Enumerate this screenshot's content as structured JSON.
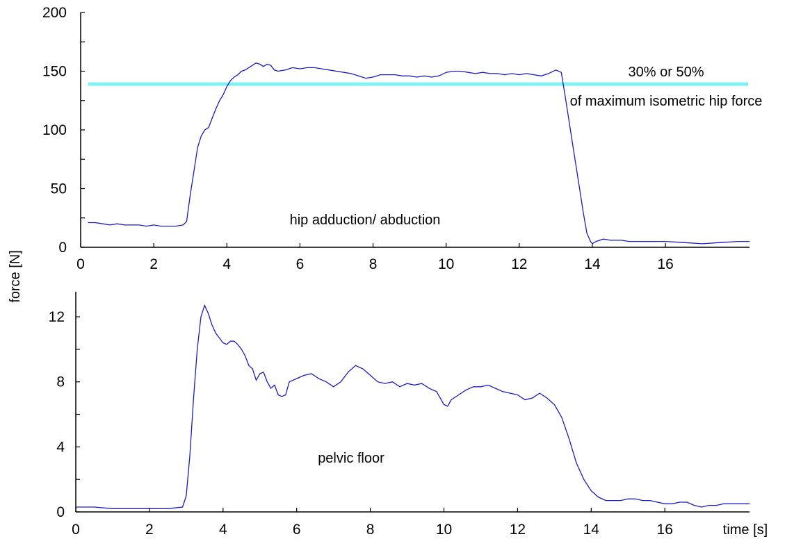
{
  "chart_data": [
    {
      "type": "line",
      "annotation": "hip adduction/ abduction",
      "xlim": [
        0,
        18.3
      ],
      "ylim": [
        0,
        200
      ],
      "x_ticks": [
        "0",
        "2",
        "4",
        "6",
        "8",
        "10",
        "12",
        "14",
        "16"
      ],
      "y_ticks": [
        "0",
        "50",
        "100",
        "150",
        "200"
      ],
      "threshold": {
        "value": 139,
        "label_line1": "30% or 50%",
        "label_line2": "of maximum isometric hip force",
        "color": "#80f2f4"
      },
      "series": [
        {
          "color": "#1a1acc",
          "points": [
            [
              0.2,
              21
            ],
            [
              0.4,
              21
            ],
            [
              0.6,
              20
            ],
            [
              0.8,
              19
            ],
            [
              1.0,
              20
            ],
            [
              1.2,
              19
            ],
            [
              1.4,
              19
            ],
            [
              1.6,
              19
            ],
            [
              1.8,
              18
            ],
            [
              2.0,
              19
            ],
            [
              2.2,
              18
            ],
            [
              2.4,
              18
            ],
            [
              2.6,
              18
            ],
            [
              2.8,
              19
            ],
            [
              2.9,
              22
            ],
            [
              3.0,
              45
            ],
            [
              3.1,
              65
            ],
            [
              3.2,
              85
            ],
            [
              3.3,
              95
            ],
            [
              3.4,
              100
            ],
            [
              3.5,
              102
            ],
            [
              3.6,
              110
            ],
            [
              3.7,
              118
            ],
            [
              3.8,
              125
            ],
            [
              3.9,
              130
            ],
            [
              4.0,
              137
            ],
            [
              4.1,
              142
            ],
            [
              4.2,
              145
            ],
            [
              4.3,
              147
            ],
            [
              4.4,
              150
            ],
            [
              4.5,
              151
            ],
            [
              4.6,
              153
            ],
            [
              4.7,
              155
            ],
            [
              4.8,
              157
            ],
            [
              4.9,
              156
            ],
            [
              5.0,
              154
            ],
            [
              5.1,
              156
            ],
            [
              5.2,
              155
            ],
            [
              5.3,
              151
            ],
            [
              5.4,
              150
            ],
            [
              5.6,
              151
            ],
            [
              5.8,
              153
            ],
            [
              6.0,
              152
            ],
            [
              6.2,
              153
            ],
            [
              6.4,
              153
            ],
            [
              6.6,
              152
            ],
            [
              6.8,
              151
            ],
            [
              7.0,
              150
            ],
            [
              7.2,
              149
            ],
            [
              7.4,
              148
            ],
            [
              7.6,
              146
            ],
            [
              7.8,
              144
            ],
            [
              8.0,
              145
            ],
            [
              8.2,
              147
            ],
            [
              8.4,
              147
            ],
            [
              8.6,
              147
            ],
            [
              8.8,
              146
            ],
            [
              9.0,
              146
            ],
            [
              9.2,
              145
            ],
            [
              9.4,
              146
            ],
            [
              9.6,
              145
            ],
            [
              9.8,
              146
            ],
            [
              10.0,
              149
            ],
            [
              10.2,
              150
            ],
            [
              10.4,
              150
            ],
            [
              10.6,
              149
            ],
            [
              10.8,
              148
            ],
            [
              11.0,
              149
            ],
            [
              11.2,
              148
            ],
            [
              11.4,
              148
            ],
            [
              11.6,
              147
            ],
            [
              11.8,
              148
            ],
            [
              12.0,
              147
            ],
            [
              12.2,
              148
            ],
            [
              12.4,
              147
            ],
            [
              12.6,
              146
            ],
            [
              12.8,
              148
            ],
            [
              13.0,
              151
            ],
            [
              13.15,
              149
            ],
            [
              13.25,
              130
            ],
            [
              13.35,
              110
            ],
            [
              13.45,
              90
            ],
            [
              13.55,
              70
            ],
            [
              13.65,
              50
            ],
            [
              13.75,
              30
            ],
            [
              13.85,
              12
            ],
            [
              13.95,
              5
            ],
            [
              14.0,
              3
            ],
            [
              14.1,
              5
            ],
            [
              14.3,
              7
            ],
            [
              14.5,
              6
            ],
            [
              14.8,
              6
            ],
            [
              15.0,
              5
            ],
            [
              15.5,
              5
            ],
            [
              16.0,
              5
            ],
            [
              16.5,
              4
            ],
            [
              17.0,
              3
            ],
            [
              17.5,
              4
            ],
            [
              18.0,
              5
            ],
            [
              18.3,
              5
            ]
          ]
        }
      ]
    },
    {
      "type": "line",
      "annotation": "pelvic floor",
      "ylabel": "force [N]",
      "xlabel": "time [s]",
      "xlim": [
        0,
        18.3
      ],
      "ylim": [
        0,
        13.5
      ],
      "x_ticks": [
        "0",
        "2",
        "4",
        "6",
        "8",
        "10",
        "12",
        "14",
        "16"
      ],
      "y_ticks": [
        "0",
        "4",
        "8",
        "12"
      ],
      "series": [
        {
          "color": "#1a1acc",
          "points": [
            [
              0.0,
              0.3
            ],
            [
              0.5,
              0.3
            ],
            [
              1.0,
              0.2
            ],
            [
              1.5,
              0.2
            ],
            [
              2.0,
              0.2
            ],
            [
              2.5,
              0.2
            ],
            [
              2.9,
              0.3
            ],
            [
              3.0,
              1.0
            ],
            [
              3.1,
              3.5
            ],
            [
              3.2,
              7.0
            ],
            [
              3.3,
              10.0
            ],
            [
              3.4,
              12.0
            ],
            [
              3.5,
              12.7
            ],
            [
              3.6,
              12.2
            ],
            [
              3.7,
              11.5
            ],
            [
              3.8,
              11.0
            ],
            [
              3.9,
              10.7
            ],
            [
              4.0,
              10.4
            ],
            [
              4.1,
              10.3
            ],
            [
              4.2,
              10.5
            ],
            [
              4.3,
              10.5
            ],
            [
              4.4,
              10.3
            ],
            [
              4.5,
              10.0
            ],
            [
              4.6,
              9.6
            ],
            [
              4.7,
              9.0
            ],
            [
              4.8,
              8.8
            ],
            [
              4.9,
              8.1
            ],
            [
              5.0,
              8.5
            ],
            [
              5.1,
              8.6
            ],
            [
              5.2,
              8.0
            ],
            [
              5.3,
              7.6
            ],
            [
              5.4,
              7.8
            ],
            [
              5.5,
              7.2
            ],
            [
              5.6,
              7.1
            ],
            [
              5.7,
              7.2
            ],
            [
              5.8,
              8.0
            ],
            [
              6.0,
              8.2
            ],
            [
              6.2,
              8.4
            ],
            [
              6.4,
              8.5
            ],
            [
              6.6,
              8.2
            ],
            [
              6.8,
              8.0
            ],
            [
              7.0,
              7.7
            ],
            [
              7.2,
              8.0
            ],
            [
              7.4,
              8.6
            ],
            [
              7.6,
              9.0
            ],
            [
              7.8,
              8.8
            ],
            [
              8.0,
              8.4
            ],
            [
              8.2,
              8.0
            ],
            [
              8.4,
              7.9
            ],
            [
              8.6,
              8.0
            ],
            [
              8.8,
              7.7
            ],
            [
              9.0,
              7.9
            ],
            [
              9.2,
              7.8
            ],
            [
              9.4,
              7.9
            ],
            [
              9.6,
              7.6
            ],
            [
              9.8,
              7.4
            ],
            [
              10.0,
              6.6
            ],
            [
              10.1,
              6.5
            ],
            [
              10.2,
              6.9
            ],
            [
              10.4,
              7.2
            ],
            [
              10.6,
              7.5
            ],
            [
              10.8,
              7.7
            ],
            [
              11.0,
              7.7
            ],
            [
              11.2,
              7.8
            ],
            [
              11.4,
              7.6
            ],
            [
              11.6,
              7.4
            ],
            [
              11.8,
              7.3
            ],
            [
              12.0,
              7.2
            ],
            [
              12.2,
              6.9
            ],
            [
              12.4,
              7.0
            ],
            [
              12.6,
              7.3
            ],
            [
              12.8,
              7.0
            ],
            [
              13.0,
              6.6
            ],
            [
              13.2,
              5.8
            ],
            [
              13.4,
              4.5
            ],
            [
              13.6,
              3.0
            ],
            [
              13.8,
              2.0
            ],
            [
              14.0,
              1.3
            ],
            [
              14.2,
              0.9
            ],
            [
              14.4,
              0.7
            ],
            [
              14.6,
              0.7
            ],
            [
              14.8,
              0.7
            ],
            [
              15.0,
              0.8
            ],
            [
              15.2,
              0.8
            ],
            [
              15.4,
              0.7
            ],
            [
              15.6,
              0.7
            ],
            [
              15.8,
              0.6
            ],
            [
              16.0,
              0.5
            ],
            [
              16.2,
              0.5
            ],
            [
              16.4,
              0.6
            ],
            [
              16.6,
              0.6
            ],
            [
              16.8,
              0.4
            ],
            [
              17.0,
              0.3
            ],
            [
              17.2,
              0.4
            ],
            [
              17.4,
              0.4
            ],
            [
              17.6,
              0.5
            ],
            [
              17.8,
              0.5
            ],
            [
              18.0,
              0.5
            ],
            [
              18.2,
              0.5
            ],
            [
              18.3,
              0.5
            ]
          ]
        }
      ]
    }
  ]
}
